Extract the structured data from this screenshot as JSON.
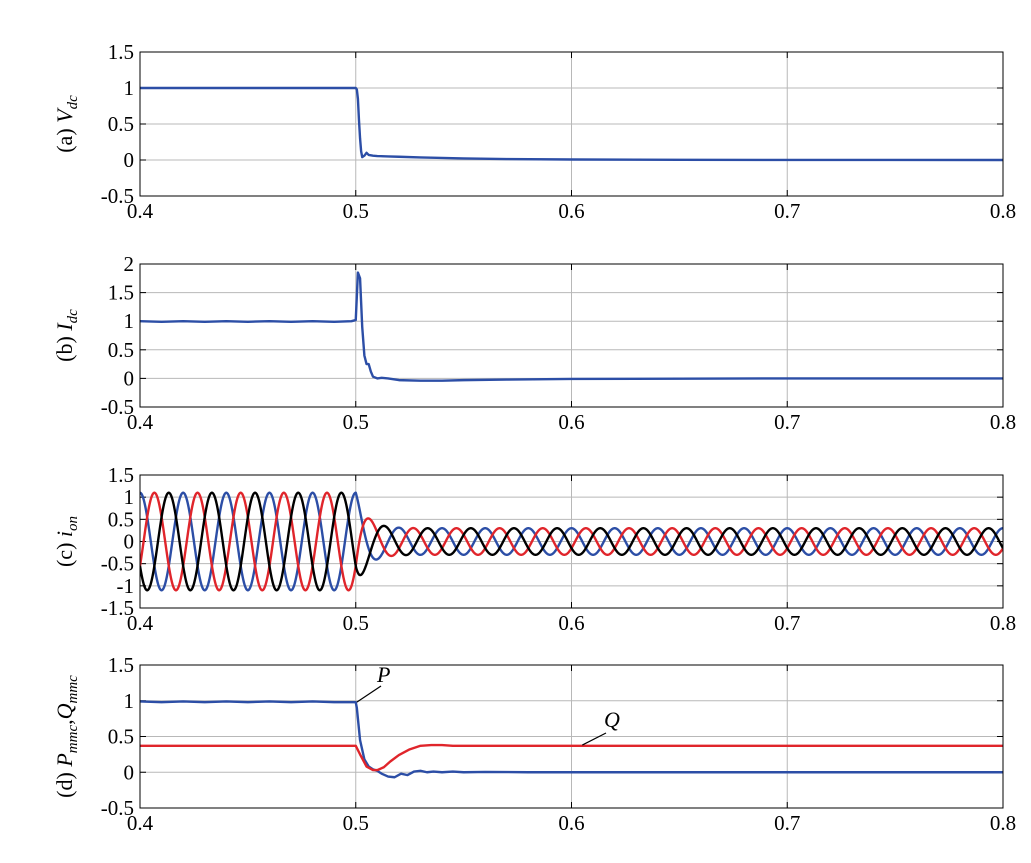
{
  "chart_data": [
    {
      "type": "line",
      "panel_label": "(a) ",
      "ylabel_main": "V",
      "ylabel_sub": "dc",
      "xlim": [
        0.4,
        0.8
      ],
      "ylim": [
        -0.5,
        1.5
      ],
      "xticks": [
        0.4,
        0.5,
        0.6,
        0.7,
        0.8
      ],
      "xtick_labels": [
        "0.4",
        "0.5",
        "0.6",
        "0.7",
        "0.8"
      ],
      "yticks": [
        -0.5,
        0,
        0.5,
        1,
        1.5
      ],
      "ytick_labels": [
        "-0.5",
        "0",
        "0.5",
        "1",
        "1.5"
      ],
      "grid": true,
      "series": [
        {
          "color": "#2c4ea6",
          "x": [
            0.4,
            0.5,
            0.5005,
            0.501,
            0.5015,
            0.502,
            0.5025,
            0.503,
            0.504,
            0.505,
            0.506,
            0.508,
            0.51,
            0.515,
            0.52,
            0.53,
            0.54,
            0.55,
            0.57,
            0.6,
            0.65,
            0.7,
            0.8
          ],
          "y": [
            1.0,
            1.0,
            0.98,
            0.85,
            0.55,
            0.3,
            0.12,
            0.04,
            0.06,
            0.1,
            0.07,
            0.06,
            0.055,
            0.05,
            0.045,
            0.035,
            0.028,
            0.022,
            0.013,
            0.007,
            0.003,
            0.001,
            0.0
          ]
        }
      ]
    },
    {
      "type": "line",
      "panel_label": "(b) ",
      "ylabel_main": "I",
      "ylabel_sub": "dc",
      "xlim": [
        0.4,
        0.8
      ],
      "ylim": [
        -0.5,
        2
      ],
      "xticks": [
        0.4,
        0.5,
        0.6,
        0.7,
        0.8
      ],
      "xtick_labels": [
        "0.4",
        "0.5",
        "0.6",
        "0.7",
        "0.8"
      ],
      "yticks": [
        -0.5,
        0,
        0.5,
        1,
        1.5,
        2
      ],
      "ytick_labels": [
        "-0.5",
        "0",
        "0.5",
        "1",
        "1.5",
        "2"
      ],
      "grid": true,
      "series": [
        {
          "color": "#2c4ea6",
          "x": [
            0.4,
            0.41,
            0.42,
            0.43,
            0.44,
            0.45,
            0.46,
            0.47,
            0.48,
            0.49,
            0.498,
            0.5,
            0.501,
            0.502,
            0.503,
            0.504,
            0.505,
            0.506,
            0.507,
            0.508,
            0.51,
            0.512,
            0.515,
            0.52,
            0.53,
            0.54,
            0.55,
            0.57,
            0.6,
            0.65,
            0.7,
            0.8
          ],
          "y": [
            1.0,
            0.99,
            1.0,
            0.99,
            1.0,
            0.99,
            1.0,
            0.99,
            1.0,
            0.99,
            1.0,
            1.02,
            1.85,
            1.75,
            0.9,
            0.4,
            0.25,
            0.25,
            0.12,
            0.03,
            0.0,
            0.01,
            0.0,
            -0.03,
            -0.04,
            -0.04,
            -0.03,
            -0.02,
            -0.01,
            -0.005,
            0.0,
            0.0
          ]
        }
      ]
    },
    {
      "type": "line",
      "panel_label": "(c) ",
      "ylabel_main": "i",
      "ylabel_sub": "on",
      "xlim": [
        0.4,
        0.8
      ],
      "ylim": [
        -1.5,
        1.5
      ],
      "xticks": [
        0.4,
        0.5,
        0.6,
        0.7,
        0.8
      ],
      "xtick_labels": [
        "0.4",
        "0.5",
        "0.6",
        "0.7",
        "0.8"
      ],
      "yticks": [
        -1.5,
        -1,
        -0.5,
        0,
        0.5,
        1,
        1.5
      ],
      "ytick_labels": [
        "-1.5",
        "-1",
        "-0.5",
        "0",
        "0.5",
        "1",
        "1.5"
      ],
      "grid": true,
      "waveform": {
        "frequency_hz": 50,
        "fault_time": 0.5,
        "pre_amplitude": 1.1,
        "post_amplitude": 0.3,
        "settle_time": 0.03,
        "phases": [
          {
            "color": "#2c4ea6",
            "phase_deg": 90
          },
          {
            "color": "#e0252b",
            "phase_deg": -30
          },
          {
            "color": "#000000",
            "phase_deg": 210
          }
        ]
      }
    },
    {
      "type": "line",
      "panel_label": "(d) ",
      "ylabel_main": "P",
      "ylabel_sub": "mmc",
      "ylabel_sep": ",",
      "ylabel_main2": "Q",
      "ylabel_sub2": "mmc",
      "xlim": [
        0.4,
        0.8
      ],
      "ylim": [
        -0.5,
        1.5
      ],
      "xticks": [
        0.4,
        0.5,
        0.6,
        0.7,
        0.8
      ],
      "xtick_labels": [
        "0.4",
        "0.5",
        "0.6",
        "0.7",
        "0.8"
      ],
      "yticks": [
        -0.5,
        0,
        0.5,
        1,
        1.5
      ],
      "ytick_labels": [
        "-0.5",
        "0",
        "0.5",
        "1",
        "1.5"
      ],
      "grid": true,
      "series": [
        {
          "name": "P",
          "color": "#2c4ea6",
          "x": [
            0.4,
            0.41,
            0.42,
            0.43,
            0.44,
            0.45,
            0.46,
            0.47,
            0.48,
            0.49,
            0.5,
            0.5005,
            0.502,
            0.504,
            0.506,
            0.508,
            0.51,
            0.512,
            0.515,
            0.518,
            0.521,
            0.524,
            0.527,
            0.53,
            0.533,
            0.536,
            0.54,
            0.545,
            0.55,
            0.56,
            0.58,
            0.6,
            0.65,
            0.7,
            0.75,
            0.8
          ],
          "y": [
            0.99,
            0.98,
            0.99,
            0.98,
            0.99,
            0.98,
            0.99,
            0.98,
            0.99,
            0.98,
            0.98,
            0.9,
            0.45,
            0.18,
            0.08,
            0.04,
            0.02,
            -0.02,
            -0.06,
            -0.07,
            -0.02,
            -0.04,
            0.01,
            0.02,
            0.0,
            0.01,
            0.0,
            0.01,
            0.0,
            0.005,
            0.0,
            0.0,
            0.0,
            0.0,
            0.0,
            0.0
          ]
        },
        {
          "name": "Q",
          "color": "#e0252b",
          "x": [
            0.4,
            0.42,
            0.44,
            0.46,
            0.48,
            0.5,
            0.502,
            0.505,
            0.508,
            0.51,
            0.513,
            0.516,
            0.52,
            0.525,
            0.53,
            0.535,
            0.54,
            0.545,
            0.55,
            0.6,
            0.7,
            0.8
          ],
          "y": [
            0.37,
            0.37,
            0.37,
            0.37,
            0.37,
            0.37,
            0.25,
            0.08,
            0.03,
            0.03,
            0.07,
            0.15,
            0.24,
            0.32,
            0.37,
            0.38,
            0.38,
            0.37,
            0.37,
            0.37,
            0.37,
            0.37
          ]
        }
      ],
      "annotations": [
        {
          "text": "P",
          "target": [
            0.5005,
            0.98
          ]
        },
        {
          "text": "Q",
          "target": [
            0.605,
            0.38
          ]
        }
      ]
    }
  ]
}
